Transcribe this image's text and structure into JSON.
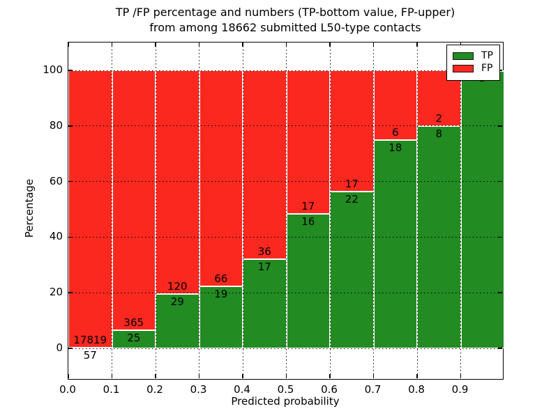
{
  "chart_data": {
    "type": "bar",
    "stacked": true,
    "percent_normalized": true,
    "title_line1": "TP /FP percentage and numbers (TP-bottom value, FP-upper)",
    "title_line2": "from among 18662 submitted L50-type contacts",
    "total_submitted": 18662,
    "xlabel": "Predicted probability",
    "ylabel": "Percentage",
    "xtick_labels": [
      "0.0",
      "0.1",
      "0.2",
      "0.3",
      "0.4",
      "0.5",
      "0.6",
      "0.7",
      "0.8",
      "0.9"
    ],
    "ytick_values": [
      0,
      20,
      40,
      60,
      80,
      100
    ],
    "ytick_labels": [
      "0",
      "20",
      "40",
      "60",
      "80",
      "100"
    ],
    "xlim": [
      0.0,
      1.0
    ],
    "ylim_percent": [
      0,
      100
    ],
    "grid": true,
    "colors": {
      "tp": "#228b22",
      "fp": "#fa281f"
    },
    "legend": {
      "position": "upper right",
      "entries": [
        {
          "label": "TP",
          "color": "#228b22"
        },
        {
          "label": "FP",
          "color": "#fa281f"
        }
      ]
    },
    "categories": [
      "0.0-0.1",
      "0.1-0.2",
      "0.2-0.3",
      "0.3-0.4",
      "0.4-0.5",
      "0.5-0.6",
      "0.6-0.7",
      "0.7-0.8",
      "0.8-0.9",
      "0.9-1.0"
    ],
    "bins": [
      {
        "x0": 0.0,
        "x1": 0.1,
        "tp": 57,
        "fp": 17819,
        "tp_label": "57",
        "fp_label": "17819"
      },
      {
        "x0": 0.1,
        "x1": 0.2,
        "tp": 25,
        "fp": 365,
        "tp_label": "25",
        "fp_label": "365"
      },
      {
        "x0": 0.2,
        "x1": 0.3,
        "tp": 29,
        "fp": 120,
        "tp_label": "29",
        "fp_label": "120"
      },
      {
        "x0": 0.3,
        "x1": 0.4,
        "tp": 19,
        "fp": 66,
        "tp_label": "19",
        "fp_label": "66"
      },
      {
        "x0": 0.4,
        "x1": 0.5,
        "tp": 17,
        "fp": 36,
        "tp_label": "17",
        "fp_label": "36"
      },
      {
        "x0": 0.5,
        "x1": 0.6,
        "tp": 16,
        "fp": 17,
        "tp_label": "16",
        "fp_label": "17"
      },
      {
        "x0": 0.6,
        "x1": 0.7,
        "tp": 22,
        "fp": 17,
        "tp_label": "22",
        "fp_label": "17"
      },
      {
        "x0": 0.7,
        "x1": 0.8,
        "tp": 18,
        "fp": 6,
        "tp_label": "18",
        "fp_label": "6"
      },
      {
        "x0": 0.8,
        "x1": 0.9,
        "tp": 8,
        "fp": 2,
        "tp_label": "8",
        "fp_label": "2"
      },
      {
        "x0": 0.9,
        "x1": 1.0,
        "tp": 3,
        "fp": 0,
        "tp_label": "3",
        "fp_label": ""
      }
    ]
  }
}
